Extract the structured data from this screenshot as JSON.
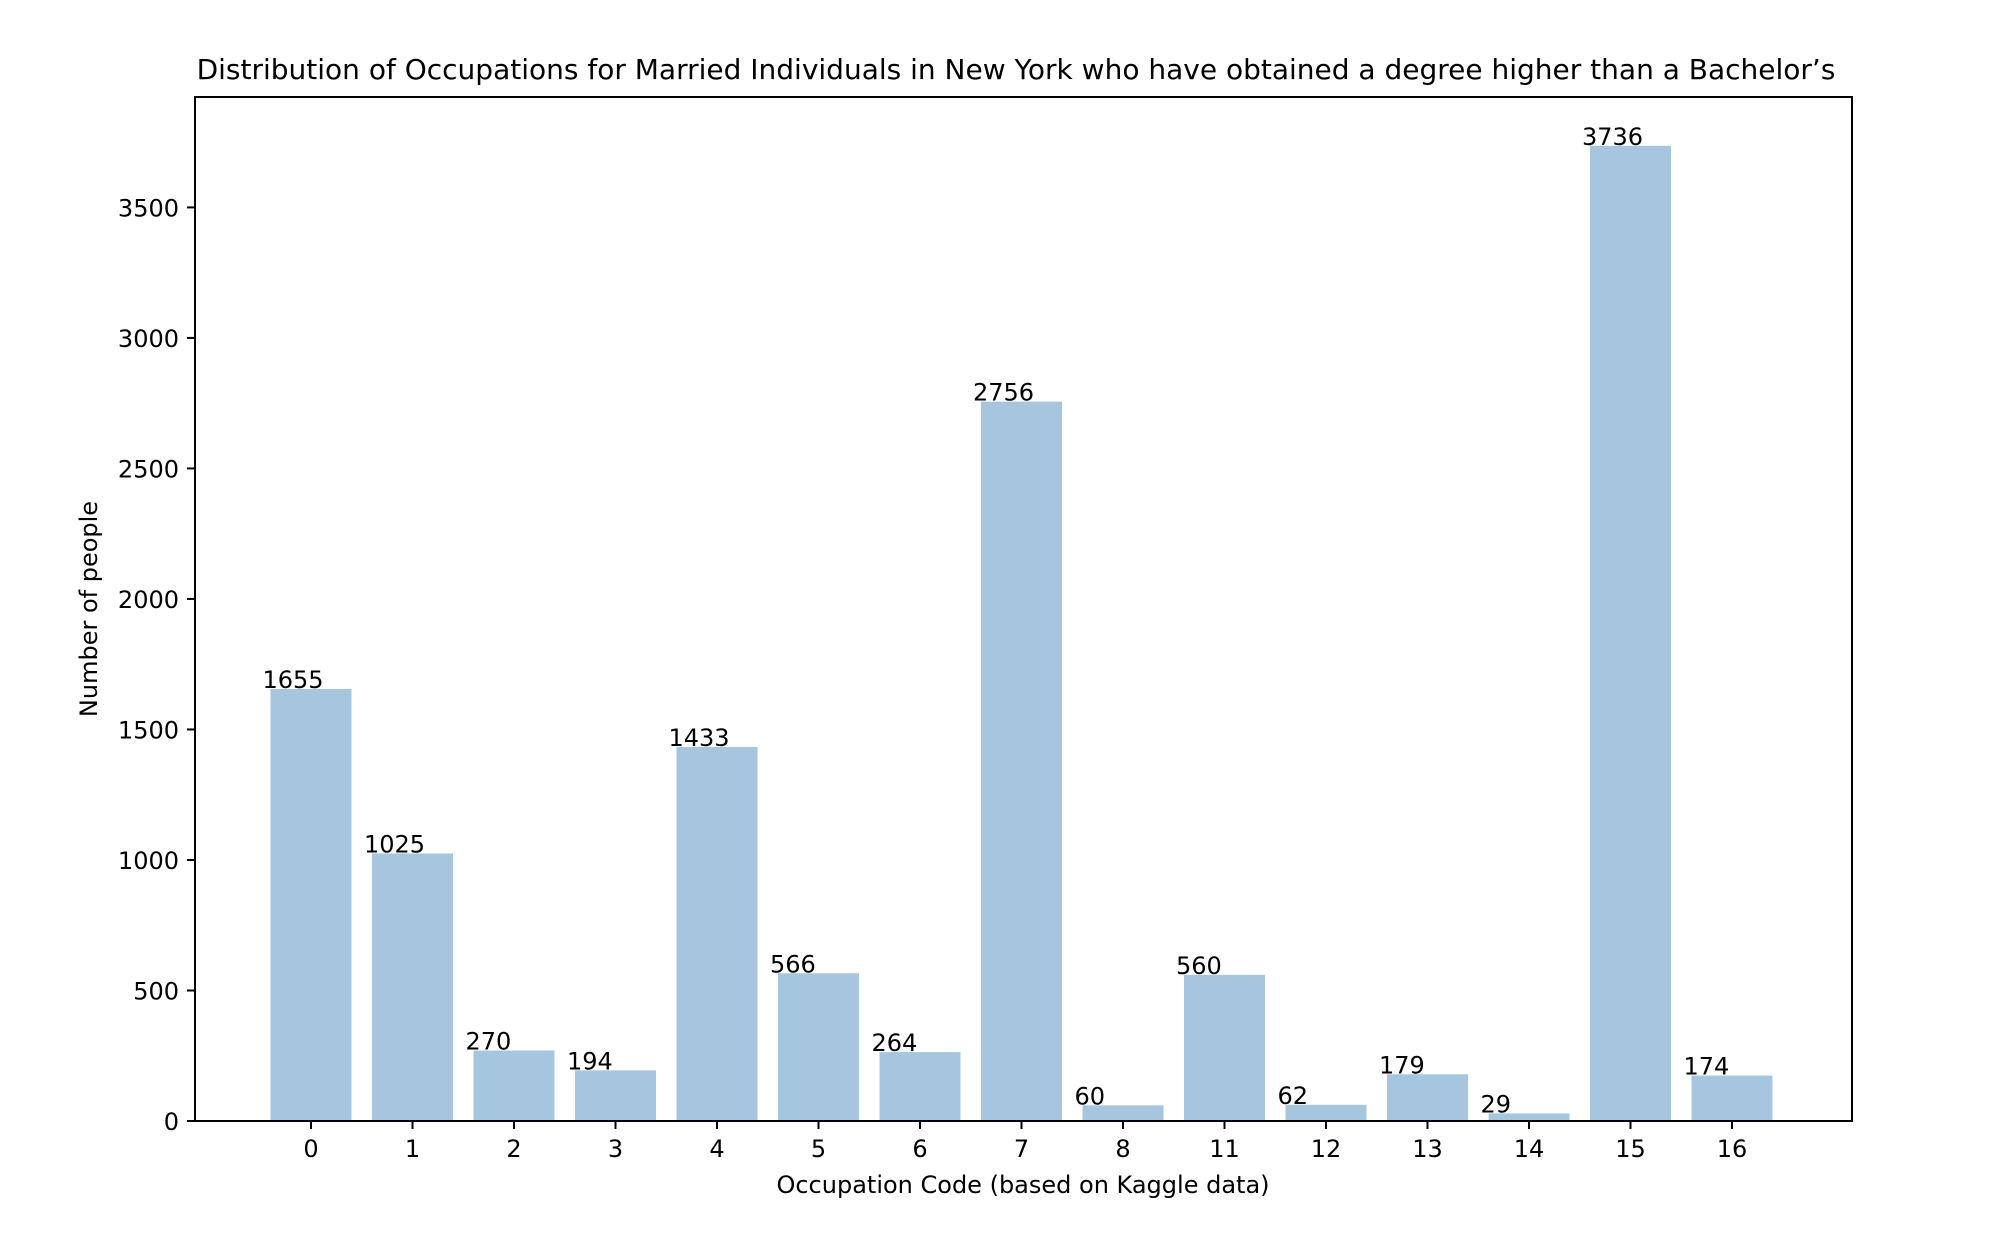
{
  "chart_data": {
    "type": "bar",
    "title": "Distribution of Occupations for Married Individuals in New York who have obtained a degree higher than a Bachelor’s",
    "xlabel": "Occupation Code (based on Kaggle data)",
    "ylabel": "Number of people",
    "categories": [
      "0",
      "1",
      "2",
      "3",
      "4",
      "5",
      "6",
      "7",
      "8",
      "11",
      "12",
      "13",
      "14",
      "15",
      "16"
    ],
    "values": [
      1655,
      1025,
      270,
      194,
      1433,
      566,
      264,
      2756,
      60,
      560,
      62,
      179,
      29,
      3736,
      174
    ],
    "data_labels": [
      "1655",
      "1025",
      "270",
      "194",
      "1433",
      "566",
      "264",
      "2756",
      "60",
      "560",
      "62",
      "179",
      "29",
      "3736",
      "174"
    ],
    "ylim": [
      0,
      3923
    ],
    "yticks": [
      0,
      500,
      1000,
      1500,
      2000,
      2500,
      3000,
      3500
    ],
    "ytick_labels": [
      "0",
      "500",
      "1000",
      "1500",
      "2000",
      "2500",
      "3000",
      "3500"
    ],
    "grid": false,
    "legend": false,
    "bar_color": "#a6c5de"
  }
}
